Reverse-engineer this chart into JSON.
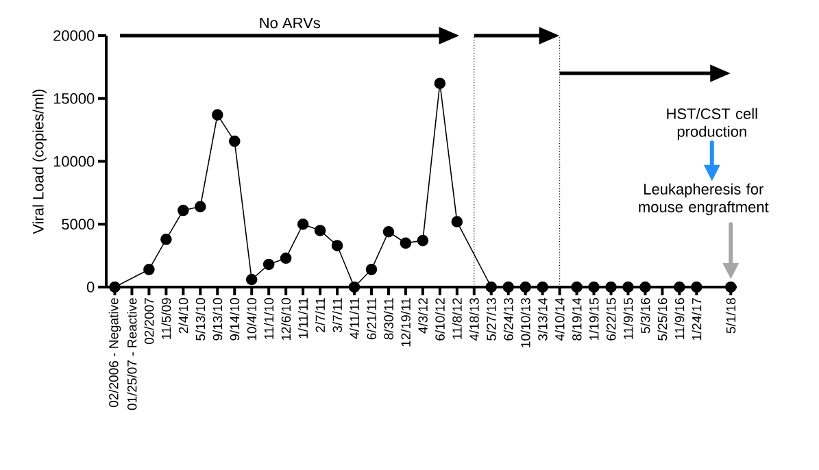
{
  "chart_data": {
    "type": "line",
    "ylabel": "Viral Load (copies/ml)",
    "categories": [
      "02/2006 - Negative",
      "01/25/07 - Reactive",
      "02/2007",
      "11/5/09",
      "2/4/10",
      "5/13/10",
      "9/13/10",
      "9/14/10",
      "10/4/10",
      "11/1/10",
      "12/6/10",
      "1/11/11",
      "2/7/11",
      "3/7/11",
      "4/11/11",
      "6/21/11",
      "8/30/11",
      "12/19/11",
      "4/3/12",
      "6/10/12",
      "11/8/12",
      "4/18/13",
      "5/27/13",
      "6/24/13",
      "10/10/13",
      "3/13/14",
      "4/10/14",
      "8/19/14",
      "1/19/15",
      "6/22/15",
      "11/9/15",
      "5/3/16",
      "5/25/16",
      "11/9/16",
      "1/24/17",
      null,
      "5/1/18"
    ],
    "values": [
      0,
      null,
      1400,
      3800,
      6100,
      6400,
      13700,
      11600,
      600,
      1800,
      2300,
      5000,
      4500,
      3300,
      0,
      1400,
      4400,
      3500,
      3700,
      16200,
      5200,
      null,
      0,
      0,
      0,
      0,
      null,
      0,
      0,
      0,
      0,
      0,
      null,
      0,
      0,
      null,
      0
    ],
    "color": "#000000",
    "marker": "circle",
    "line_style": "solid",
    "grid": false,
    "ylim": [
      0,
      20000
    ],
    "yticks": [
      0,
      5000,
      10000,
      15000,
      20000
    ],
    "ref_lines": [
      {
        "axis": "x",
        "value": "4/18/13",
        "line_style": "dotted",
        "color": "#000000"
      },
      {
        "axis": "x",
        "value": "4/10/14",
        "line_style": "dotted",
        "color": "#000000"
      }
    ],
    "annotations": [
      "No ARVs",
      "HST/CST cell production",
      "Leukapheresis for mouse engraftment"
    ]
  }
}
